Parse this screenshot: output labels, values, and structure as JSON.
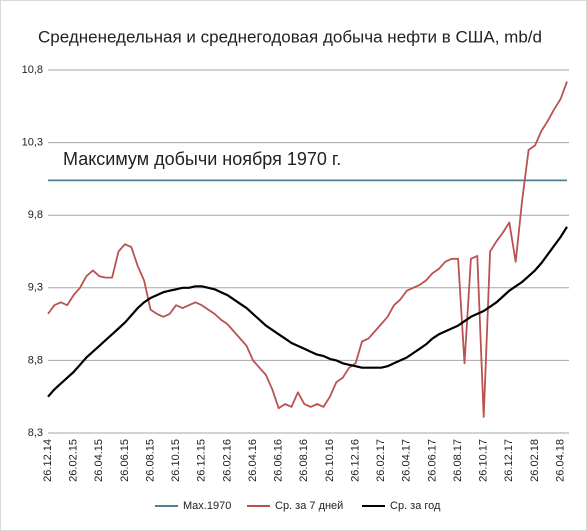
{
  "chart_data": {
    "type": "line",
    "title": "Средненедельная и среднегодовая добыча нефти в США, mb/d",
    "annotation": "Максимум добычи ноября 1970 г.",
    "categories": [
      "26.12.14",
      null,
      null,
      null,
      "26.02.15",
      null,
      null,
      null,
      "26.04.15",
      null,
      null,
      null,
      "26.06.15",
      null,
      null,
      null,
      "26.08.15",
      null,
      null,
      null,
      "26.10.15",
      null,
      null,
      null,
      "26.12.15",
      null,
      null,
      null,
      "26.02.16",
      null,
      null,
      null,
      "26.04.16",
      null,
      null,
      null,
      "26.06.16",
      null,
      null,
      null,
      "26.08.16",
      null,
      null,
      null,
      "26.10.16",
      null,
      null,
      null,
      "26.12.16",
      null,
      null,
      null,
      "26.02.17",
      null,
      null,
      null,
      "26.04.17",
      null,
      null,
      null,
      "26.06.17",
      null,
      null,
      null,
      "26.08.17",
      null,
      null,
      null,
      "26.10.17",
      null,
      null,
      null,
      "26.12.17",
      null,
      null,
      null,
      "26.02.18",
      null,
      null,
      null,
      "26.04.18",
      null
    ],
    "series": [
      {
        "name": "Max.1970",
        "color": "#4f8290",
        "values": [
          10.04,
          10.04,
          10.04,
          10.04,
          10.04,
          10.04,
          10.04,
          10.04,
          10.04,
          10.04,
          10.04,
          10.04,
          10.04,
          10.04,
          10.04,
          10.04,
          10.04,
          10.04,
          10.04,
          10.04,
          10.04,
          10.04,
          10.04,
          10.04,
          10.04,
          10.04,
          10.04,
          10.04,
          10.04,
          10.04,
          10.04,
          10.04,
          10.04,
          10.04,
          10.04,
          10.04,
          10.04,
          10.04,
          10.04,
          10.04,
          10.04,
          10.04,
          10.04,
          10.04,
          10.04,
          10.04,
          10.04,
          10.04,
          10.04,
          10.04,
          10.04,
          10.04,
          10.04,
          10.04,
          10.04,
          10.04,
          10.04,
          10.04,
          10.04,
          10.04,
          10.04,
          10.04,
          10.04,
          10.04,
          10.04,
          10.04,
          10.04,
          10.04,
          10.04,
          10.04,
          10.04,
          10.04,
          10.04,
          10.04,
          10.04,
          10.04,
          10.04,
          10.04,
          10.04,
          10.04,
          10.04,
          10.04
        ]
      },
      {
        "name": "Ср. за 7 дней",
        "color": "#b9534f",
        "values": [
          9.12,
          9.18,
          9.2,
          9.18,
          9.25,
          9.3,
          9.38,
          9.42,
          9.38,
          9.37,
          9.37,
          9.55,
          9.6,
          9.58,
          9.45,
          9.35,
          9.15,
          9.12,
          9.1,
          9.12,
          9.18,
          9.16,
          9.18,
          9.2,
          9.18,
          9.15,
          9.12,
          9.08,
          9.05,
          9.0,
          8.95,
          8.9,
          8.8,
          8.75,
          8.7,
          8.6,
          8.47,
          8.5,
          8.48,
          8.58,
          8.5,
          8.48,
          8.5,
          8.48,
          8.55,
          8.65,
          8.68,
          8.75,
          8.78,
          8.93,
          8.95,
          9.0,
          9.05,
          9.1,
          9.18,
          9.22,
          9.28,
          9.3,
          9.32,
          9.35,
          9.4,
          9.43,
          9.48,
          9.5,
          9.5,
          8.78,
          9.5,
          9.52,
          8.41,
          9.55,
          9.62,
          9.68,
          9.75,
          9.48,
          9.9,
          10.25,
          10.28,
          10.38,
          10.45,
          10.53,
          10.6,
          10.72
        ]
      },
      {
        "name": "Ср. за год",
        "color": "#000000",
        "values": [
          8.55,
          8.6,
          8.64,
          8.68,
          8.72,
          8.77,
          8.82,
          8.86,
          8.9,
          8.94,
          8.98,
          9.02,
          9.06,
          9.11,
          9.16,
          9.2,
          9.23,
          9.25,
          9.27,
          9.28,
          9.29,
          9.3,
          9.3,
          9.31,
          9.31,
          9.3,
          9.29,
          9.27,
          9.25,
          9.22,
          9.19,
          9.16,
          9.12,
          9.08,
          9.04,
          9.01,
          8.98,
          8.95,
          8.92,
          8.9,
          8.88,
          8.86,
          8.84,
          8.83,
          8.81,
          8.8,
          8.78,
          8.77,
          8.76,
          8.75,
          8.75,
          8.75,
          8.75,
          8.76,
          8.78,
          8.8,
          8.82,
          8.85,
          8.88,
          8.91,
          8.95,
          8.98,
          9.0,
          9.02,
          9.04,
          9.07,
          9.1,
          9.12,
          9.14,
          9.17,
          9.2,
          9.24,
          9.28,
          9.31,
          9.34,
          9.38,
          9.42,
          9.47,
          9.53,
          9.59,
          9.65,
          9.72
        ]
      }
    ],
    "ylim": [
      8.3,
      10.8
    ],
    "yticks": [
      {
        "value": 8.3,
        "label": "8,3"
      },
      {
        "value": 8.8,
        "label": "8,8"
      },
      {
        "value": 9.3,
        "label": "9,3"
      },
      {
        "value": 9.8,
        "label": "9,8"
      },
      {
        "value": 10.3,
        "label": "10,3"
      },
      {
        "value": 10.8,
        "label": "10,8"
      }
    ],
    "grid": true,
    "legend": "bottom"
  }
}
